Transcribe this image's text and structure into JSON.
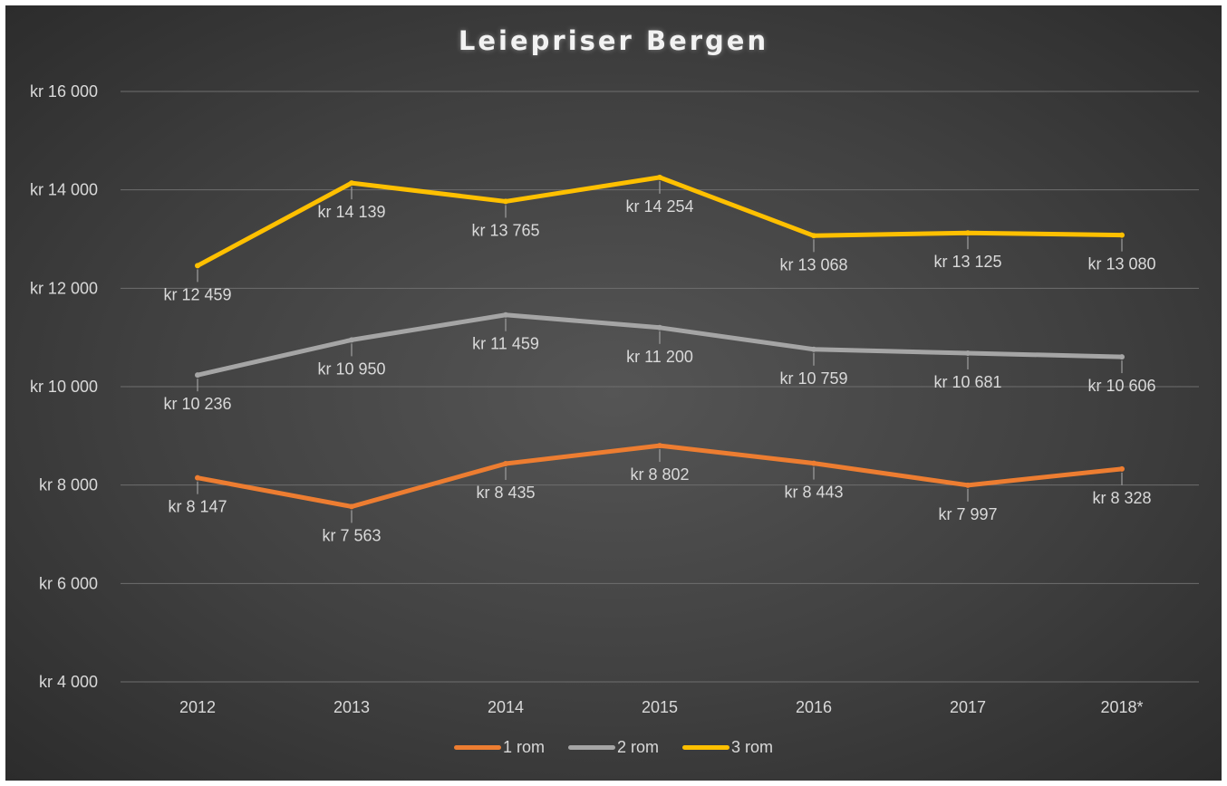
{
  "chart_data": {
    "type": "line",
    "title": "Leiepriser Bergen",
    "categories": [
      "2012",
      "2013",
      "2014",
      "2015",
      "2016",
      "2017",
      "2018*"
    ],
    "ylim": [
      4000,
      16000
    ],
    "yticks": [
      {
        "value": 4000,
        "label": "kr 4 000"
      },
      {
        "value": 6000,
        "label": "kr 6 000"
      },
      {
        "value": 8000,
        "label": "kr 8 000"
      },
      {
        "value": 10000,
        "label": "kr 10 000"
      },
      {
        "value": 12000,
        "label": "kr 12 000"
      },
      {
        "value": 14000,
        "label": "kr 14 000"
      },
      {
        "value": 16000,
        "label": "kr 16 000"
      }
    ],
    "grid": true,
    "legend_position": "bottom",
    "series": [
      {
        "name": "1 rom",
        "color": "#ed7d31",
        "values": [
          8147,
          7563,
          8435,
          8802,
          8443,
          7997,
          8328
        ],
        "labels": [
          "kr 8 147",
          "kr 7 563",
          "kr 8 435",
          "kr 8 802",
          "kr 8 443",
          "kr 7 997",
          "kr 8 328"
        ],
        "label_side": [
          "below",
          "below",
          "below",
          "below",
          "below",
          "below",
          "below"
        ]
      },
      {
        "name": "2 rom",
        "color": "#a5a5a5",
        "values": [
          10236,
          10950,
          11459,
          11200,
          10759,
          10681,
          10606
        ],
        "labels": [
          "kr 10 236",
          "kr 10 950",
          "kr 11 459",
          "kr 11 200",
          "kr 10 759",
          "kr 10 681",
          "kr 10 606"
        ],
        "label_side": [
          "below",
          "below",
          "below",
          "below",
          "below",
          "below",
          "below"
        ]
      },
      {
        "name": "3 rom",
        "color": "#ffc000",
        "values": [
          12459,
          14139,
          13765,
          14254,
          13068,
          13125,
          13080
        ],
        "labels": [
          "kr 12 459",
          "kr 14 139",
          "kr 13 765",
          "kr 14 254",
          "kr 13 068",
          "kr 13 125",
          "kr 13 080"
        ],
        "label_side": [
          "below",
          "below",
          "below",
          "below",
          "below",
          "below",
          "below"
        ]
      }
    ]
  }
}
